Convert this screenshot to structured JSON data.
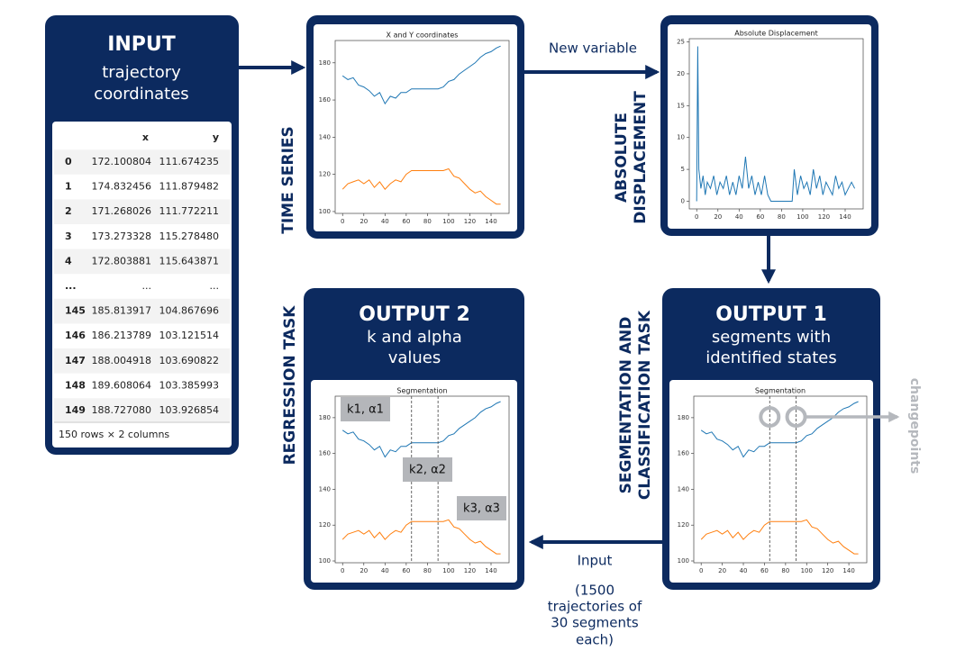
{
  "input": {
    "title": "INPUT",
    "subtitle": [
      "trajectory",
      "coordinates"
    ]
  },
  "table": {
    "columns": [
      "x",
      "y"
    ],
    "rows": [
      [
        "0",
        "172.100804",
        "111.674235"
      ],
      [
        "1",
        "174.832456",
        "111.879482"
      ],
      [
        "2",
        "171.268026",
        "111.772211"
      ],
      [
        "3",
        "173.273328",
        "115.278480"
      ],
      [
        "4",
        "172.803881",
        "115.643871"
      ],
      [
        "...",
        "...",
        "..."
      ],
      [
        "145",
        "185.813917",
        "104.867696"
      ],
      [
        "146",
        "186.213789",
        "103.121514"
      ],
      [
        "147",
        "188.004918",
        "103.690822"
      ],
      [
        "148",
        "189.608064",
        "103.385993"
      ],
      [
        "149",
        "188.727080",
        "103.926854"
      ]
    ],
    "footer": "150 rows × 2 columns"
  },
  "labels": {
    "time_series": "TIME SERIES",
    "absolute_displacement": [
      "ABSOLUTE",
      "DISPLACEMENT"
    ],
    "regression": "REGRESSION TASK",
    "segmentation": [
      "SEGMENTATION AND",
      "CLASSIFICATION TASK"
    ],
    "changepoints": "changepoints"
  },
  "arrows": {
    "new_variable": "New variable",
    "input_note": [
      "Input",
      "(1500",
      "trajectories of",
      "30 segments",
      "each)"
    ]
  },
  "outputs": [
    {
      "title": "OUTPUT 2",
      "subtitle": [
        "k and alpha",
        "values"
      ]
    },
    {
      "title": "OUTPUT 1",
      "subtitle": [
        "segments with",
        "identified states"
      ]
    }
  ],
  "plots": [
    {
      "type": "line",
      "title": "X and Y coordinates",
      "x": [
        0,
        5,
        10,
        15,
        20,
        25,
        30,
        35,
        40,
        45,
        50,
        55,
        60,
        65,
        70,
        75,
        80,
        85,
        90,
        95,
        100,
        105,
        110,
        115,
        120,
        125,
        130,
        135,
        140,
        145,
        149
      ],
      "series": [
        {
          "color": "#1f77b4",
          "values": [
            173,
            171,
            172,
            168,
            167,
            165,
            162,
            164,
            158,
            162,
            161,
            164,
            164,
            166,
            166,
            166,
            166,
            166,
            166,
            167,
            170,
            171,
            174,
            176,
            178,
            180,
            183,
            185,
            186,
            188,
            189
          ]
        },
        {
          "color": "#ff7f0e",
          "values": [
            112,
            115,
            116,
            117,
            115,
            117,
            113,
            116,
            112,
            115,
            117,
            116,
            120,
            122,
            122,
            122,
            122,
            122,
            122,
            122,
            123,
            119,
            118,
            115,
            112,
            110,
            111,
            108,
            106,
            104,
            104
          ]
        }
      ],
      "xlim": [
        -7,
        157
      ],
      "ylim": [
        99,
        192
      ],
      "xticks": [
        0,
        20,
        40,
        60,
        80,
        100,
        120,
        140
      ],
      "yticks": [
        100,
        120,
        140,
        160,
        180
      ]
    },
    {
      "type": "line",
      "title": "Absolute Displacement",
      "x": [
        0,
        1,
        2,
        4,
        6,
        8,
        10,
        13,
        16,
        19,
        22,
        25,
        28,
        31,
        34,
        37,
        40,
        43,
        46,
        49,
        52,
        55,
        58,
        61,
        64,
        67,
        70,
        75,
        80,
        85,
        90,
        92,
        95,
        98,
        101,
        104,
        107,
        110,
        113,
        116,
        119,
        122,
        125,
        128,
        131,
        134,
        137,
        140,
        143,
        146,
        149
      ],
      "series": [
        {
          "color": "#1f77b4",
          "values": [
            0,
            24.3,
            5,
            2,
            4,
            1,
            3,
            2,
            4,
            1,
            3,
            2,
            4,
            1,
            3,
            1,
            4,
            2,
            7,
            2,
            4,
            1,
            3,
            1,
            4,
            1,
            0,
            0,
            0,
            0,
            0,
            5,
            1,
            4,
            2,
            3,
            1,
            5,
            2,
            4,
            1,
            3,
            2,
            1,
            4,
            2,
            3,
            1,
            2,
            3,
            2
          ]
        }
      ],
      "xlim": [
        -7,
        157
      ],
      "ylim": [
        -1.2,
        25.5
      ],
      "xticks": [
        0,
        20,
        40,
        60,
        80,
        100,
        120,
        140
      ],
      "yticks": [
        0,
        5,
        10,
        15,
        20,
        25
      ]
    },
    {
      "type": "segmentation",
      "title": "Segmentation",
      "changepoints": [
        65,
        90
      ],
      "annotations": [
        "k1, α1",
        "k2, α2",
        "k3, α3"
      ]
    },
    {
      "type": "segmentation",
      "title": "Segmentation",
      "changepoints": [
        65,
        90
      ]
    }
  ]
}
